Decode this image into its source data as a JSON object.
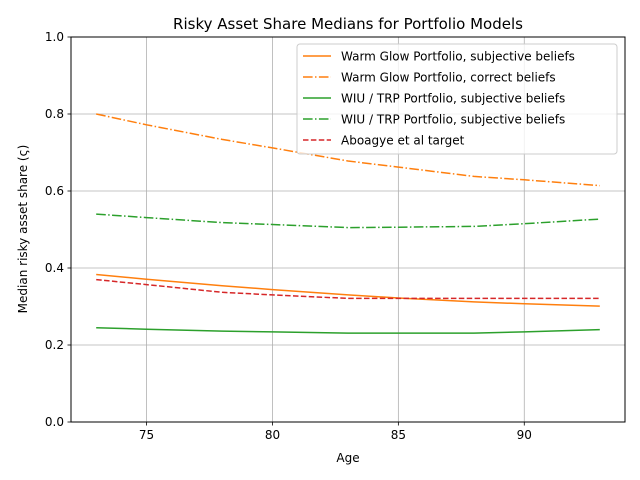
{
  "chart_data": {
    "type": "line",
    "title": "Risky Asset Share Medians for Portfolio Models",
    "xlabel": "Age",
    "ylabel": "Median risky asset share (ς)",
    "xlim": [
      72.0,
      94.0
    ],
    "ylim": [
      0.0,
      1.0
    ],
    "xticks": [
      75,
      80,
      85,
      90
    ],
    "yticks": [
      0.0,
      0.2,
      0.4,
      0.6,
      0.8,
      1.0
    ],
    "xtick_labels": [
      "75",
      "80",
      "85",
      "90"
    ],
    "ytick_labels": [
      "0.0",
      "0.2",
      "0.4",
      "0.6",
      "0.8",
      "1.0"
    ],
    "grid": true,
    "legend_position": "top-right",
    "x": [
      73,
      75,
      78,
      80,
      83,
      85,
      88,
      90,
      93
    ],
    "series": [
      {
        "name": "Warm Glow Portfolio, subjective beliefs",
        "color": "#ff7f0e",
        "dash": "solid",
        "values": [
          0.383,
          0.371,
          0.354,
          0.344,
          0.33,
          0.322,
          0.312,
          0.307,
          0.301
        ]
      },
      {
        "name": "Warm Glow Portfolio, correct beliefs",
        "color": "#ff7f0e",
        "dash": "dashdot",
        "values": [
          0.8,
          0.772,
          0.734,
          0.712,
          0.678,
          0.662,
          0.638,
          0.629,
          0.614
        ]
      },
      {
        "name": "WIU / TRP Portfolio, subjective beliefs",
        "color": "#2ca02c",
        "dash": "solid",
        "values": [
          0.245,
          0.241,
          0.236,
          0.234,
          0.231,
          0.231,
          0.231,
          0.234,
          0.24
        ]
      },
      {
        "name": "WIU / TRP Portfolio, subjective beliefs",
        "color": "#2ca02c",
        "dash": "dashdot",
        "values": [
          0.54,
          0.531,
          0.518,
          0.513,
          0.505,
          0.506,
          0.508,
          0.515,
          0.527
        ]
      },
      {
        "name": "Aboagye et al target",
        "color": "#d62728",
        "dash": "dashed",
        "values": [
          0.37,
          0.357,
          0.337,
          0.33,
          0.321,
          0.321,
          0.321,
          0.321,
          0.321
        ]
      }
    ]
  }
}
